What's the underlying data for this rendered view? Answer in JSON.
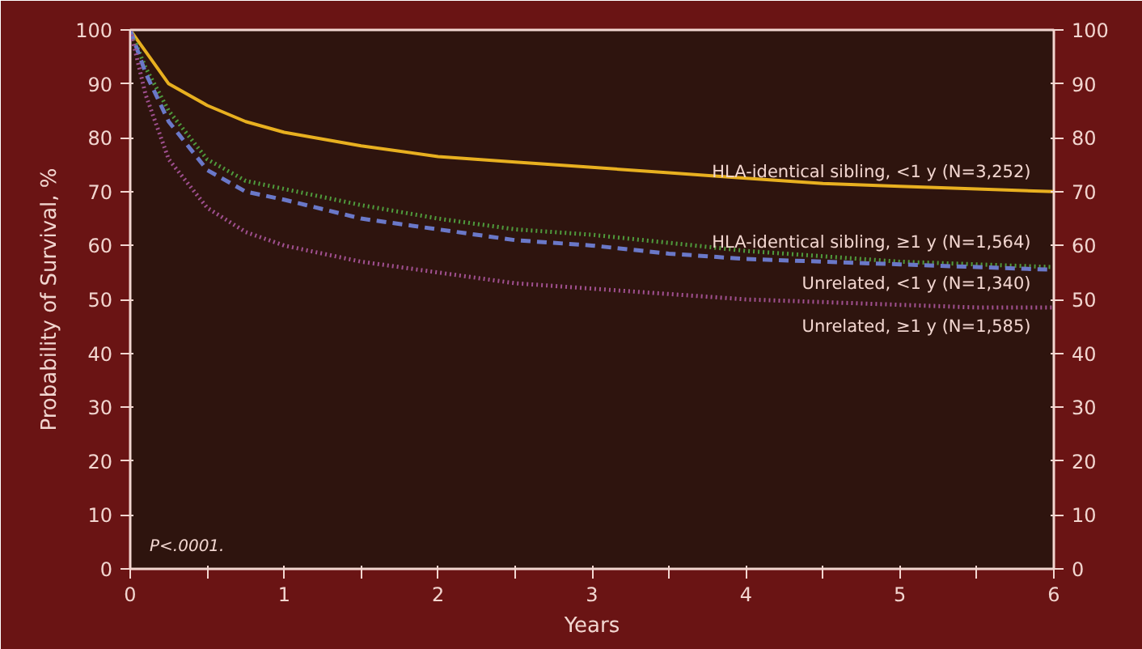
{
  "chart_data": {
    "type": "line",
    "xlabel": "Years",
    "ylabel": "Probability of Survival, %",
    "x": [
      0,
      0.1,
      0.25,
      0.5,
      0.75,
      1,
      1.5,
      2,
      2.5,
      3,
      3.5,
      4,
      4.5,
      5,
      5.5,
      6
    ],
    "series": [
      {
        "name": "HLA-identical sibling, <1 y (N=3,252)",
        "color": "#e8b020",
        "line_style": "solid",
        "values": [
          100,
          96,
          90,
          86,
          83,
          81,
          78.5,
          76.5,
          75.5,
          74.5,
          73.5,
          72.5,
          71.5,
          71,
          70.5,
          70
        ]
      },
      {
        "name": "HLA-identical sibling, ≥1 y (N=1,564)",
        "color": "#4f9a3c",
        "line_style": "dotted",
        "values": [
          100,
          93,
          85,
          76,
          72,
          70.5,
          67.5,
          65,
          63,
          62,
          60.5,
          59,
          58,
          57,
          56.5,
          56
        ]
      },
      {
        "name": "Unrelated, <1 y (N=1,340)",
        "color": "#6a78c8",
        "line_style": "dashed",
        "values": [
          100,
          92,
          83,
          74,
          70,
          68.5,
          65,
          63,
          61,
          60,
          58.5,
          57.5,
          57,
          56.5,
          56,
          55.5
        ]
      },
      {
        "name": "Unrelated, ≥1 y (N=1,585)",
        "color": "#a05090",
        "line_style": "dotted",
        "values": [
          100,
          88,
          76,
          67,
          62.5,
          60,
          57,
          55,
          53,
          52,
          51,
          50,
          49.5,
          49,
          48.5,
          48.5
        ]
      }
    ],
    "xlim": [
      0,
      6
    ],
    "ylim": [
      0,
      100
    ],
    "y2lim": [
      0,
      100
    ],
    "xticks": [
      0,
      {
        "value": 0.5,
        "label": null
      },
      1,
      {
        "value": 1.5,
        "label": null
      },
      2,
      {
        "value": 2.5,
        "label": null
      },
      3,
      {
        "value": 3.5,
        "label": null
      },
      4,
      {
        "value": 4.5,
        "label": null
      },
      5,
      {
        "value": 5.5,
        "label": null
      },
      6
    ],
    "yticks": [
      0,
      10,
      20,
      30,
      40,
      50,
      60,
      70,
      80,
      90,
      100
    ],
    "y2ticks": [
      0,
      10,
      20,
      30,
      40,
      50,
      60,
      70,
      80,
      90,
      100
    ],
    "annotations": [
      "P<.0001."
    ],
    "grid": false
  }
}
